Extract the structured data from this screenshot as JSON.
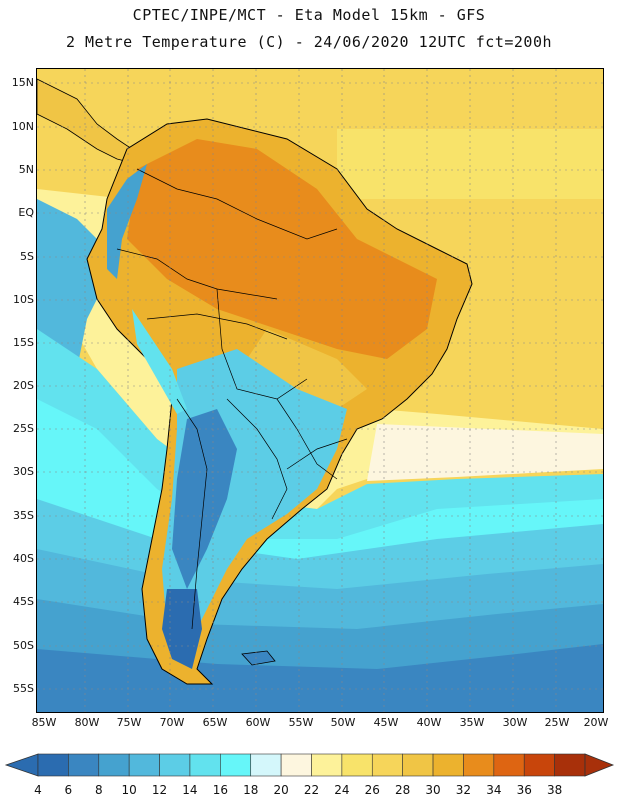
{
  "header": {
    "title_line1": "CPTEC/INPE/MCT -  Eta Model 15km - GFS",
    "title_line2": "2 Metre Temperature (C) - 24/06/2020 12UTC fct=200h"
  },
  "map": {
    "lat_labels": [
      "15N",
      "10N",
      "5N",
      "EQ",
      "5S",
      "10S",
      "15S",
      "20S",
      "25S",
      "30S",
      "35S",
      "40S",
      "45S",
      "50S",
      "55S"
    ],
    "lon_labels": [
      "85W",
      "80W",
      "75W",
      "70W",
      "65W",
      "60W",
      "55W",
      "50W",
      "45W",
      "40W",
      "35W",
      "30W",
      "25W",
      "20W"
    ]
  },
  "colorbar": {
    "labels": [
      "4",
      "6",
      "8",
      "10",
      "12",
      "14",
      "16",
      "18",
      "20",
      "22",
      "24",
      "26",
      "28",
      "30",
      "32",
      "34",
      "36",
      "38"
    ],
    "colors": [
      "#2b6cb0",
      "#3a86c1",
      "#45a2cf",
      "#52b8dc",
      "#5ccde6",
      "#62e2ee",
      "#66f6f9",
      "#d4f7fb",
      "#fdf6df",
      "#fdf29a",
      "#f8e36a",
      "#f6d55a",
      "#f0c545",
      "#ecb22e",
      "#e88c1c",
      "#de6512",
      "#c8450b",
      "#a8300a"
    ]
  }
}
